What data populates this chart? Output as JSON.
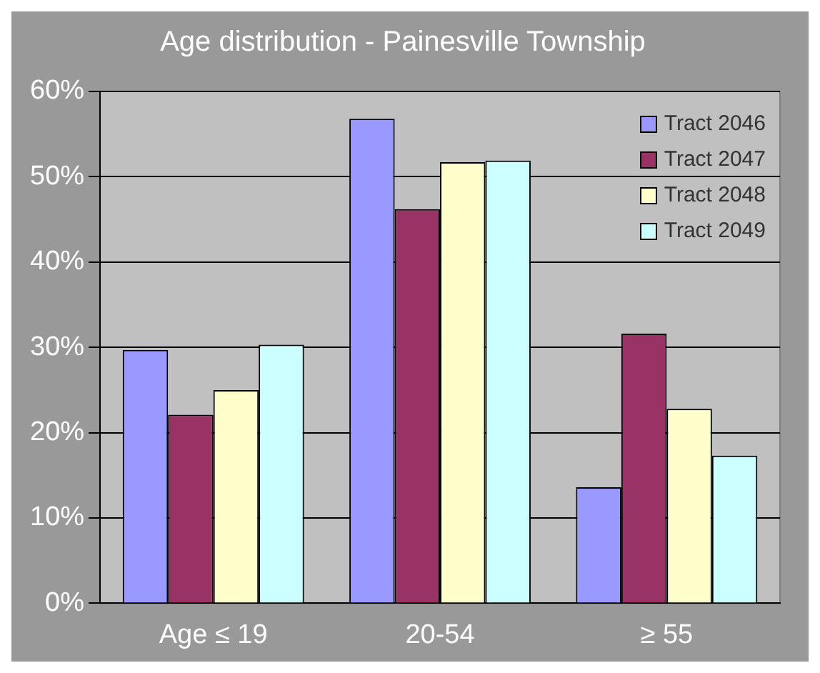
{
  "chart_data": {
    "type": "bar",
    "title": "Age distribution - Painesville Township",
    "categories": [
      "Age ≤ 19",
      "20-54",
      "≥ 55"
    ],
    "series": [
      {
        "name": "Tract 2046",
        "color": "#9999ff",
        "values": [
          29.7,
          56.8,
          13.6
        ]
      },
      {
        "name": "Tract 2047",
        "color": "#993366",
        "values": [
          22.1,
          46.2,
          31.6
        ]
      },
      {
        "name": "Tract 2048",
        "color": "#ffffcc",
        "values": [
          25.0,
          51.7,
          22.8
        ]
      },
      {
        "name": "Tract 2049",
        "color": "#ccffff",
        "values": [
          30.3,
          51.9,
          17.3
        ]
      }
    ],
    "ylim": [
      0,
      60
    ],
    "yticks": [
      {
        "value": 0,
        "label": "0%"
      },
      {
        "value": 10,
        "label": "10%"
      },
      {
        "value": 20,
        "label": "20%"
      },
      {
        "value": 30,
        "label": "30%"
      },
      {
        "value": 40,
        "label": "40%"
      },
      {
        "value": 50,
        "label": "50%"
      },
      {
        "value": 60,
        "label": "60%"
      }
    ],
    "grid": "y",
    "legend": "top right"
  }
}
